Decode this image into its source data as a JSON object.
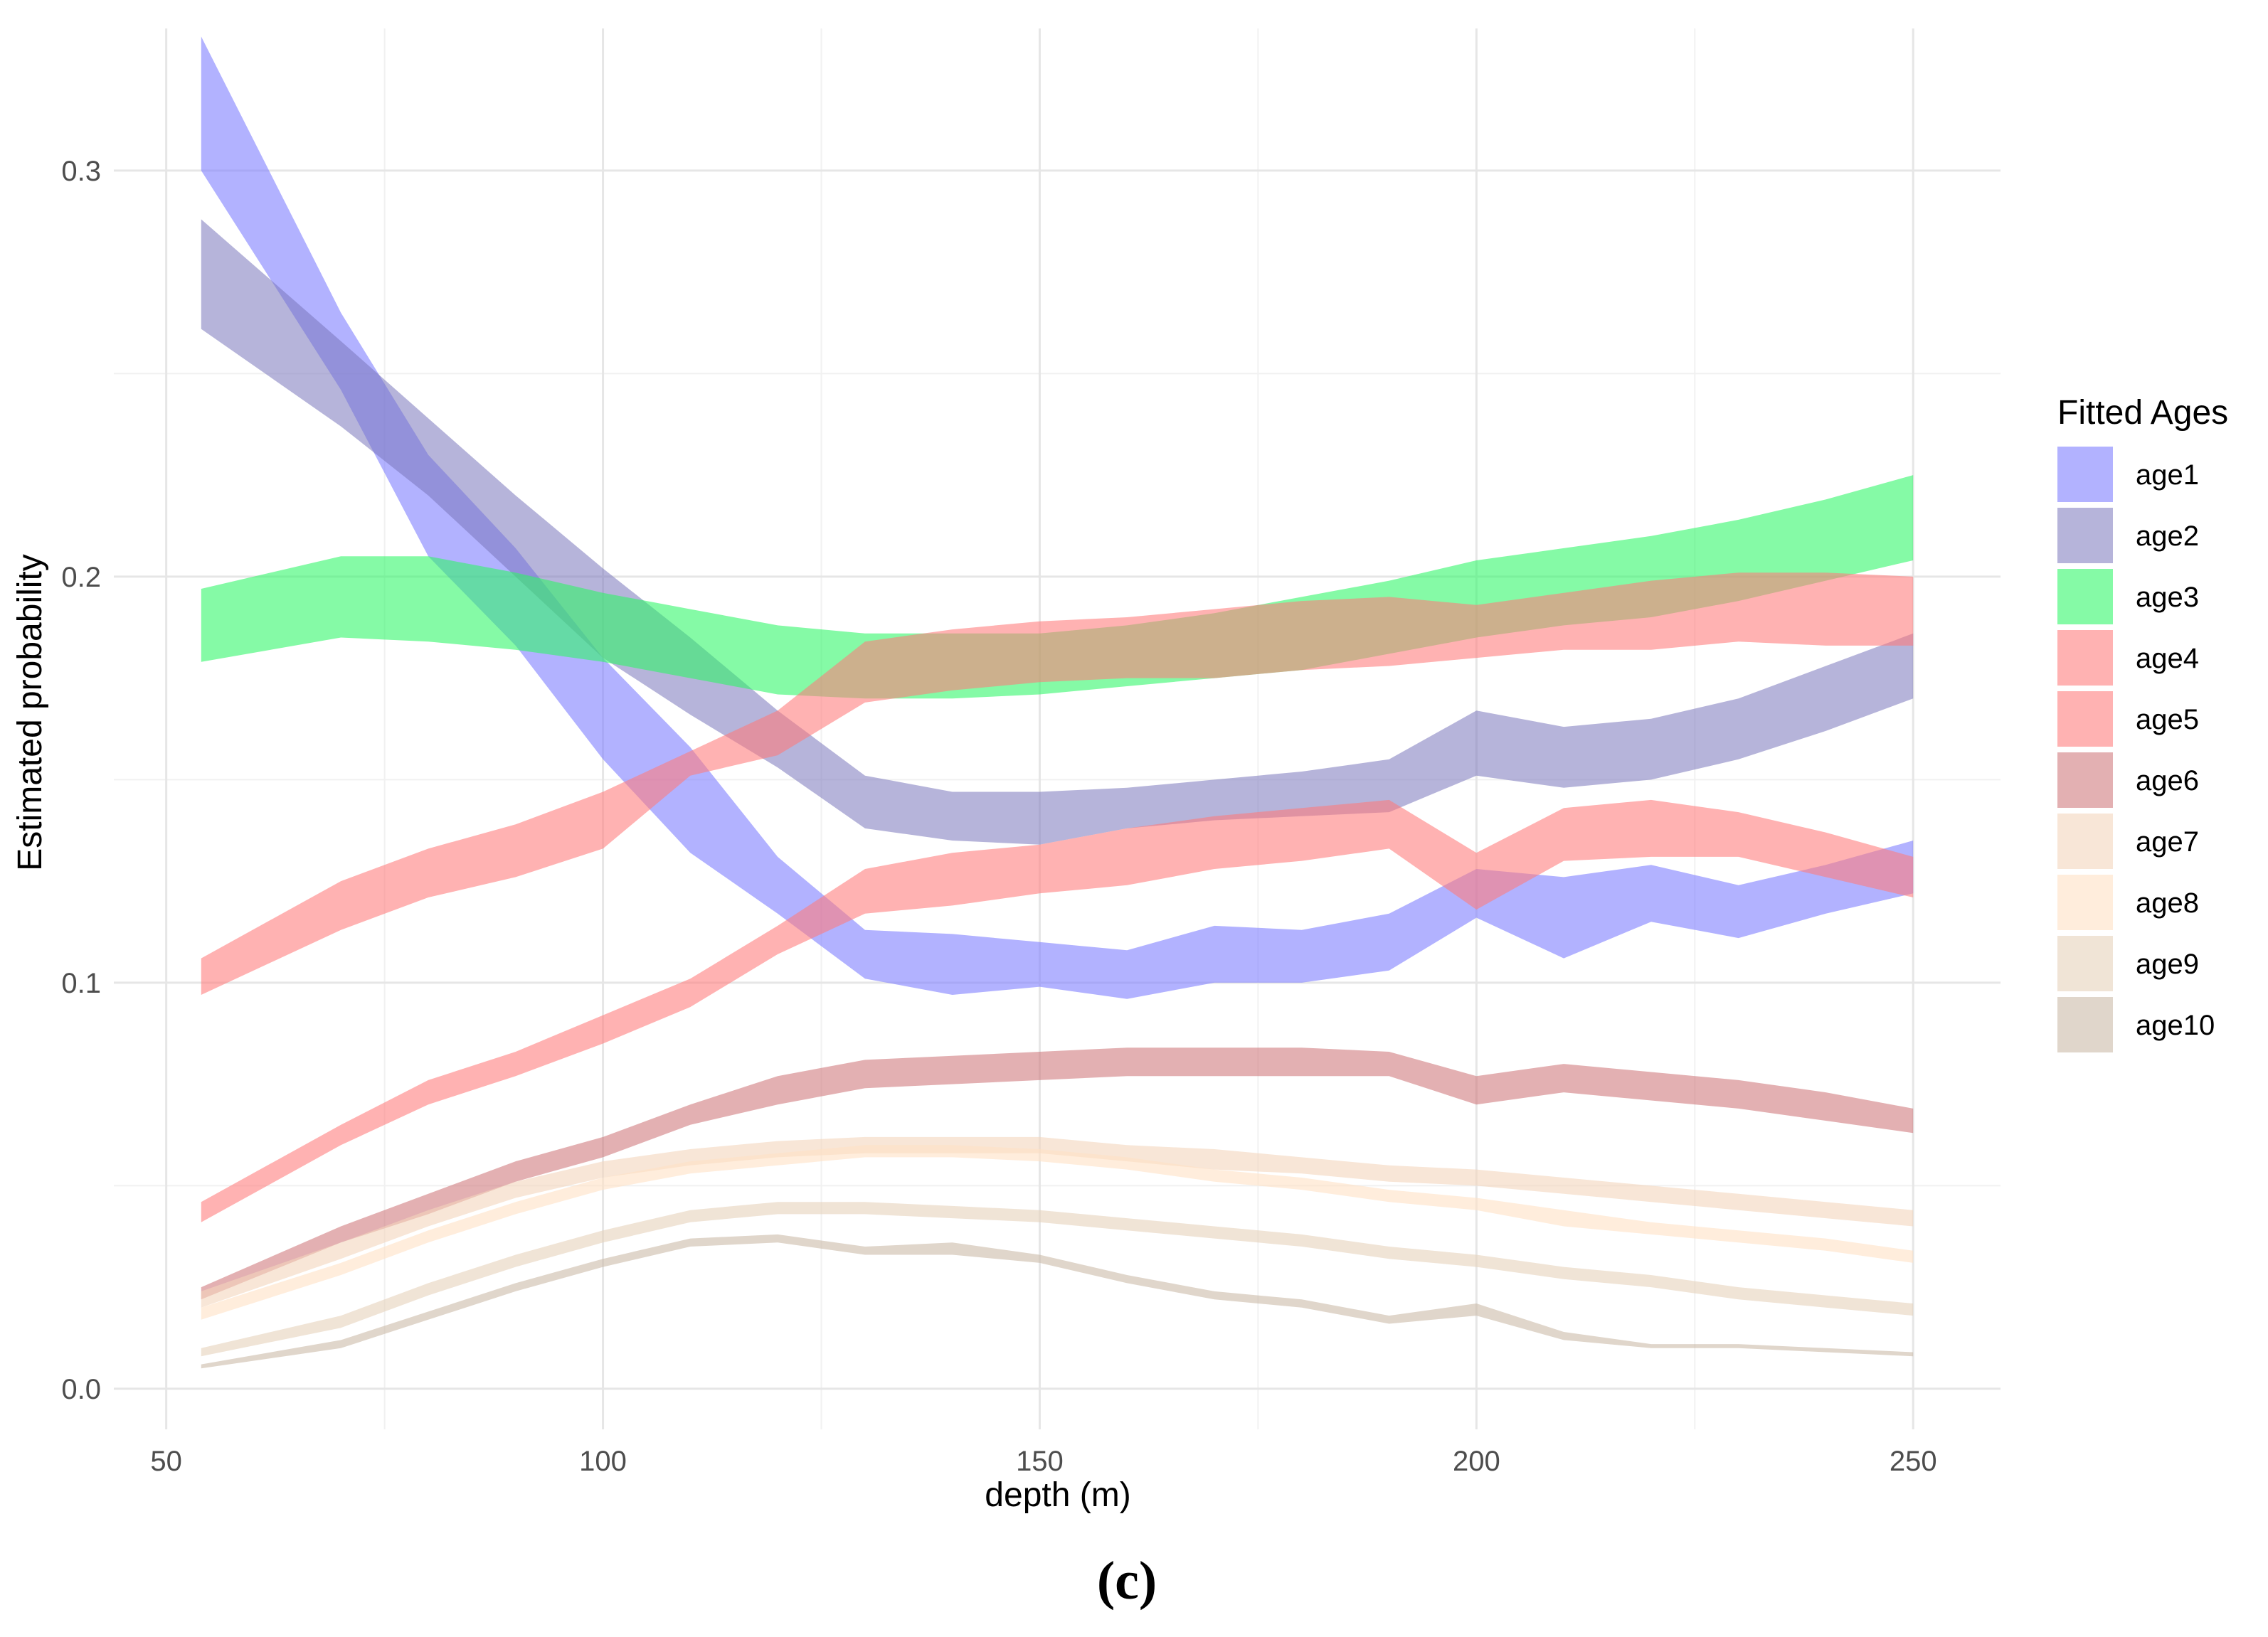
{
  "chart_data": {
    "type": "area",
    "title": "",
    "xlabel": "depth (m)",
    "ylabel": "Estimated probability",
    "caption": "(c)",
    "xlim": [
      44,
      260
    ],
    "ylim": [
      -0.01,
      0.335
    ],
    "x_ticks": [
      50,
      100,
      150,
      200,
      250
    ],
    "x_tick_labels": [
      "50",
      "100",
      "150",
      "200",
      "250"
    ],
    "y_ticks": [
      0.0,
      0.1,
      0.2,
      0.3
    ],
    "y_tick_labels": [
      "0.0",
      "0.1",
      "0.2",
      "0.3"
    ],
    "y_minor_ticks": [
      0.05,
      0.15,
      0.25
    ],
    "x_minor_ticks": [
      75,
      125,
      175,
      225
    ],
    "grid": true,
    "legend": {
      "title": "Fitted Ages",
      "position": "right"
    },
    "x": [
      54,
      70,
      80,
      90,
      100,
      110,
      120,
      130,
      140,
      150,
      160,
      170,
      180,
      190,
      200,
      210,
      220,
      230,
      240,
      250
    ],
    "series": [
      {
        "name": "age1",
        "color": "#7b7bff",
        "opacity": 0.58,
        "lower": [
          0.3,
          0.246,
          0.205,
          0.183,
          0.155,
          0.132,
          0.117,
          0.101,
          0.097,
          0.099,
          0.096,
          0.1,
          0.1,
          0.103,
          0.116,
          0.106,
          0.115,
          0.111,
          0.117,
          0.122
        ],
        "upper": [
          0.333,
          0.265,
          0.23,
          0.207,
          0.18,
          0.158,
          0.131,
          0.113,
          0.112,
          0.11,
          0.108,
          0.114,
          0.113,
          0.117,
          0.128,
          0.126,
          0.129,
          0.124,
          0.129,
          0.135
        ]
      },
      {
        "name": "age2",
        "color": "#7a76bb",
        "opacity": 0.55,
        "lower": [
          0.261,
          0.237,
          0.22,
          0.2,
          0.18,
          0.166,
          0.153,
          0.138,
          0.135,
          0.134,
          0.138,
          0.14,
          0.141,
          0.142,
          0.151,
          0.148,
          0.15,
          0.155,
          0.162,
          0.17
        ],
        "upper": [
          0.288,
          0.258,
          0.239,
          0.22,
          0.202,
          0.185,
          0.167,
          0.151,
          0.147,
          0.147,
          0.148,
          0.15,
          0.152,
          0.155,
          0.167,
          0.163,
          0.165,
          0.17,
          0.178,
          0.186
        ]
      },
      {
        "name": "age3",
        "color": "#2df666",
        "opacity": 0.58,
        "lower": [
          0.179,
          0.185,
          0.184,
          0.182,
          0.179,
          0.175,
          0.171,
          0.17,
          0.17,
          0.171,
          0.173,
          0.175,
          0.177,
          0.181,
          0.185,
          0.188,
          0.19,
          0.194,
          0.199,
          0.204
        ],
        "upper": [
          0.197,
          0.205,
          0.205,
          0.201,
          0.196,
          0.192,
          0.188,
          0.186,
          0.186,
          0.186,
          0.188,
          0.191,
          0.195,
          0.199,
          0.204,
          0.207,
          0.21,
          0.214,
          0.219,
          0.225
        ]
      },
      {
        "name": "age4",
        "color": "#ff7b7b",
        "opacity": 0.58,
        "lower": [
          0.097,
          0.113,
          0.121,
          0.126,
          0.133,
          0.151,
          0.156,
          0.169,
          0.172,
          0.174,
          0.175,
          0.175,
          0.177,
          0.178,
          0.18,
          0.182,
          0.182,
          0.184,
          0.183,
          0.183
        ],
        "upper": [
          0.106,
          0.125,
          0.133,
          0.139,
          0.147,
          0.157,
          0.167,
          0.184,
          0.187,
          0.189,
          0.19,
          0.192,
          0.194,
          0.195,
          0.193,
          0.196,
          0.199,
          0.201,
          0.201,
          0.2
        ]
      },
      {
        "name": "age5",
        "color": "#ff7b7b",
        "opacity": 0.58,
        "lower": [
          0.041,
          0.06,
          0.07,
          0.077,
          0.085,
          0.094,
          0.107,
          0.117,
          0.119,
          0.122,
          0.124,
          0.128,
          0.13,
          0.133,
          0.118,
          0.13,
          0.131,
          0.131,
          0.126,
          0.121
        ],
        "upper": [
          0.046,
          0.065,
          0.076,
          0.083,
          0.092,
          0.101,
          0.114,
          0.128,
          0.132,
          0.134,
          0.138,
          0.141,
          0.143,
          0.145,
          0.132,
          0.143,
          0.145,
          0.142,
          0.137,
          0.131
        ]
      },
      {
        "name": "age6",
        "color": "#cc6f72",
        "opacity": 0.55,
        "lower": [
          0.022,
          0.036,
          0.043,
          0.051,
          0.057,
          0.065,
          0.07,
          0.074,
          0.075,
          0.076,
          0.077,
          0.077,
          0.077,
          0.077,
          0.07,
          0.073,
          0.071,
          0.069,
          0.066,
          0.063
        ],
        "upper": [
          0.025,
          0.04,
          0.048,
          0.056,
          0.062,
          0.07,
          0.077,
          0.081,
          0.082,
          0.083,
          0.084,
          0.084,
          0.084,
          0.083,
          0.077,
          0.08,
          0.078,
          0.076,
          0.073,
          0.069
        ]
      },
      {
        "name": "age7",
        "color": "#f3d6bd",
        "opacity": 0.6,
        "lower": [
          0.02,
          0.032,
          0.04,
          0.047,
          0.052,
          0.055,
          0.057,
          0.058,
          0.058,
          0.058,
          0.056,
          0.054,
          0.053,
          0.051,
          0.05,
          0.048,
          0.046,
          0.044,
          0.042,
          0.04
        ],
        "upper": [
          0.024,
          0.036,
          0.044,
          0.051,
          0.056,
          0.059,
          0.061,
          0.062,
          0.062,
          0.062,
          0.06,
          0.059,
          0.057,
          0.055,
          0.054,
          0.052,
          0.05,
          0.048,
          0.046,
          0.044
        ]
      },
      {
        "name": "age8",
        "color": "#ffe1c4",
        "opacity": 0.6,
        "lower": [
          0.017,
          0.028,
          0.036,
          0.043,
          0.049,
          0.053,
          0.055,
          0.057,
          0.057,
          0.056,
          0.054,
          0.051,
          0.049,
          0.046,
          0.044,
          0.04,
          0.038,
          0.036,
          0.034,
          0.031
        ],
        "upper": [
          0.02,
          0.031,
          0.039,
          0.046,
          0.052,
          0.056,
          0.058,
          0.06,
          0.06,
          0.059,
          0.057,
          0.054,
          0.052,
          0.049,
          0.047,
          0.044,
          0.041,
          0.039,
          0.037,
          0.034
        ]
      },
      {
        "name": "age9",
        "color": "#e6d2bb",
        "opacity": 0.6,
        "lower": [
          0.008,
          0.015,
          0.023,
          0.03,
          0.036,
          0.041,
          0.043,
          0.043,
          0.042,
          0.041,
          0.039,
          0.037,
          0.035,
          0.032,
          0.03,
          0.027,
          0.025,
          0.022,
          0.02,
          0.018
        ],
        "upper": [
          0.01,
          0.018,
          0.026,
          0.033,
          0.039,
          0.044,
          0.046,
          0.046,
          0.045,
          0.044,
          0.042,
          0.04,
          0.038,
          0.035,
          0.033,
          0.03,
          0.028,
          0.025,
          0.023,
          0.021
        ]
      },
      {
        "name": "age10",
        "color": "#cbbba9",
        "opacity": 0.6,
        "lower": [
          0.005,
          0.01,
          0.017,
          0.024,
          0.03,
          0.035,
          0.036,
          0.033,
          0.033,
          0.031,
          0.026,
          0.022,
          0.02,
          0.016,
          0.018,
          0.012,
          0.01,
          0.01,
          0.009,
          0.008
        ],
        "upper": [
          0.006,
          0.012,
          0.019,
          0.026,
          0.032,
          0.037,
          0.038,
          0.035,
          0.036,
          0.033,
          0.028,
          0.024,
          0.022,
          0.018,
          0.021,
          0.014,
          0.011,
          0.011,
          0.01,
          0.009
        ]
      }
    ]
  }
}
